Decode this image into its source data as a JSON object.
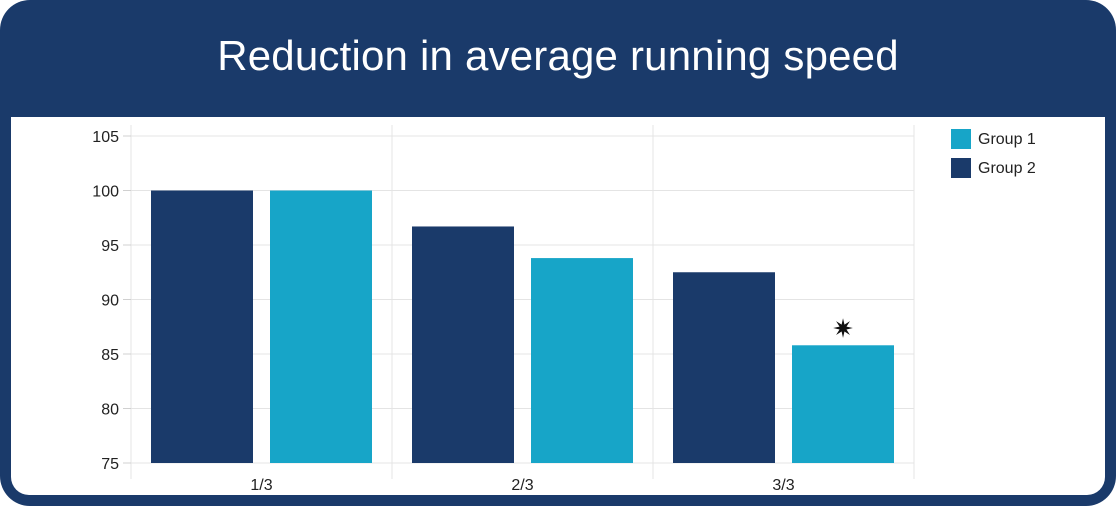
{
  "chart_data": {
    "type": "bar",
    "title": "Reduction in average running speed",
    "categories": [
      "1/3",
      "2/3",
      "3/3"
    ],
    "series": [
      {
        "name": "Group 2",
        "values": [
          100,
          96.7,
          92.5
        ],
        "color": "#1a3a6a"
      },
      {
        "name": "Group 1",
        "values": [
          100,
          93.8,
          85.8
        ],
        "color": "#17a5c8"
      }
    ],
    "legend_order": [
      "Group 1",
      "Group 2"
    ],
    "ylim": [
      75,
      105
    ],
    "yticks": [
      75,
      80,
      85,
      90,
      95,
      100,
      105
    ],
    "grid": true,
    "legend": "top-right",
    "annotations": [
      {
        "category": "3/3",
        "series": "Group 1",
        "symbol": "✷"
      }
    ]
  }
}
